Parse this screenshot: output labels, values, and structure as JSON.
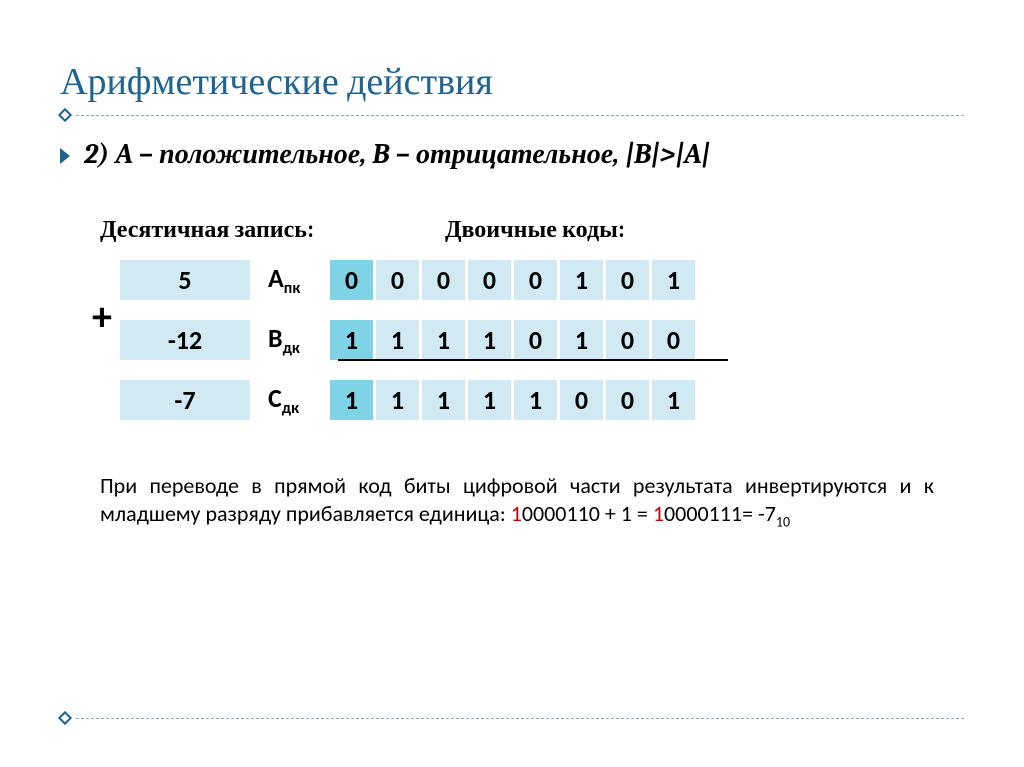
{
  "title": "Арифметические действия",
  "bullet": "2) A – положительное, B – отрицательное, |B|>|A|",
  "labels": {
    "decimal": "Десятичная запись:",
    "binary": "Двоичные коды:"
  },
  "plus": "+",
  "rows": [
    {
      "dec": "5",
      "code": "A",
      "sub": "пк",
      "bits": [
        "0",
        "0",
        "0",
        "0",
        "0",
        "1",
        "0",
        "1"
      ],
      "hi": [
        0
      ]
    },
    {
      "dec": "-12",
      "code": "B",
      "sub": "дк",
      "bits": [
        "1",
        "1",
        "1",
        "1",
        "0",
        "1",
        "0",
        "0"
      ],
      "hi": [
        0
      ]
    },
    {
      "dec": "-7",
      "code": "C",
      "sub": "дк",
      "bits": [
        "1",
        "1",
        "1",
        "1",
        "1",
        "0",
        "0",
        "1"
      ],
      "hi": [
        0
      ]
    }
  ],
  "explain": {
    "p1": "При переводе в прямой код биты цифровой части результата инвертируются и к младшему разряду прибавляется единица: ",
    "red1": "1",
    "t2": "0000110 + 1 = ",
    "red2": "1",
    "t3": "0000111= -7",
    "sub": "10"
  },
  "colors": {
    "title": "#1f6391",
    "cell_bg": "#d0e9f2",
    "cell_hi": "#7fd3e6",
    "red": "#c00000"
  }
}
